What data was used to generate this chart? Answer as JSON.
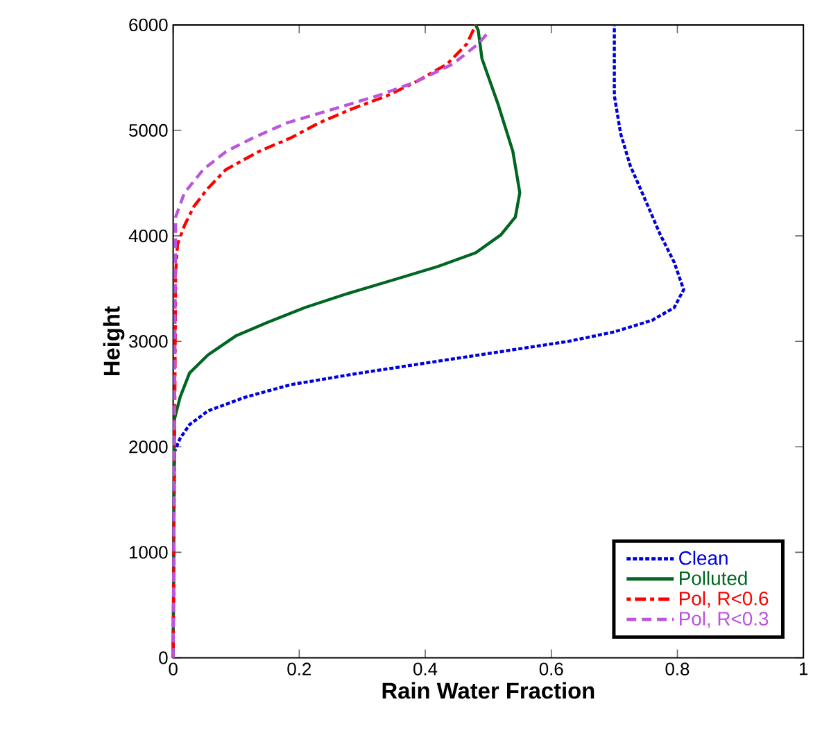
{
  "chart_data": {
    "type": "line",
    "xlabel": "Rain Water Fraction",
    "ylabel": "Height",
    "xlim": [
      0,
      1
    ],
    "ylim": [
      0,
      6000
    ],
    "xticks": [
      0,
      0.2,
      0.4,
      0.6,
      0.8,
      1
    ],
    "yticks": [
      0,
      1000,
      2000,
      3000,
      4000,
      5000,
      6000
    ],
    "legend": "bottom right",
    "grid": false,
    "marker": "none",
    "series": [
      {
        "name": "Clean",
        "color": "#0000dd",
        "line_style": "dotted",
        "x": [
          0,
          0.002,
          0.011,
          0.026,
          0.055,
          0.114,
          0.187,
          0.297,
          0.407,
          0.517,
          0.627,
          0.7,
          0.76,
          0.795,
          0.81,
          0.795,
          0.773,
          0.747,
          0.725,
          0.71,
          0.7,
          0.7
        ],
        "values": [
          0,
          1950,
          2080,
          2210,
          2340,
          2470,
          2590,
          2700,
          2800,
          2900,
          3000,
          3090,
          3200,
          3320,
          3490,
          3750,
          4010,
          4370,
          4670,
          4970,
          5330,
          6000
        ]
      },
      {
        "name": "Polluted",
        "color": "#006622",
        "line_style": "solid",
        "x": [
          0,
          0.002,
          0.011,
          0.026,
          0.055,
          0.099,
          0.15,
          0.209,
          0.275,
          0.348,
          0.42,
          0.48,
          0.52,
          0.543,
          0.55,
          0.539,
          0.516,
          0.49,
          0.484,
          0.48
        ],
        "values": [
          0,
          2260,
          2470,
          2700,
          2870,
          3050,
          3180,
          3320,
          3450,
          3580,
          3710,
          3840,
          4010,
          4180,
          4410,
          4800,
          5240,
          5680,
          5950,
          6000
        ]
      },
      {
        "name": "Pol, R<0.6",
        "color": "#ff0000",
        "line_style": "dashdot",
        "x": [
          0,
          0.004,
          0.007,
          0.018,
          0.033,
          0.055,
          0.084,
          0.136,
          0.187,
          0.231,
          0.282,
          0.34,
          0.385,
          0.435,
          0.466,
          0.48
        ],
        "values": [
          0,
          3660,
          3920,
          4100,
          4280,
          4450,
          4630,
          4800,
          4930,
          5070,
          5200,
          5330,
          5460,
          5630,
          5820,
          6000
        ]
      },
      {
        "name": "Pol, R<0.3",
        "color": "#bb55dd",
        "line_style": "dashed",
        "x": [
          0,
          0.004,
          0.018,
          0.048,
          0.084,
          0.127,
          0.18,
          0.253,
          0.325,
          0.385,
          0.444,
          0.484,
          0.5
        ],
        "values": [
          0,
          4180,
          4410,
          4630,
          4800,
          4930,
          5070,
          5200,
          5330,
          5460,
          5630,
          5820,
          5930
        ]
      }
    ]
  }
}
